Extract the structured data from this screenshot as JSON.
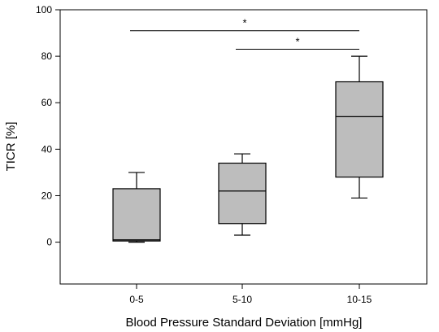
{
  "chart_data": {
    "type": "box",
    "title": "",
    "xlabel": "Blood Pressure Standard Deviation  [mmHg]",
    "ylabel": "TICR  [%]",
    "ylim": [
      -18,
      100
    ],
    "yticks": [
      0,
      20,
      40,
      60,
      80,
      100
    ],
    "categories": [
      "0-5",
      "5-10",
      "10-15"
    ],
    "boxes": [
      {
        "category": "0-5",
        "whisker_low": 0,
        "q1": 0.5,
        "median": 1,
        "q3": 23,
        "whisker_high": 30
      },
      {
        "category": "5-10",
        "whisker_low": 3,
        "q1": 8,
        "median": 22,
        "q3": 34,
        "whisker_high": 38
      },
      {
        "category": "10-15",
        "whisker_low": 19,
        "q1": 28,
        "median": 54,
        "q3": 69,
        "whisker_high": 80
      }
    ],
    "significance": [
      {
        "from": "0-5",
        "to": "10-15",
        "y": 91,
        "label": "*"
      },
      {
        "from": "5-10",
        "to": "10-15",
        "y": 83,
        "label": "*"
      }
    ],
    "box_fill": "#bdbdbd",
    "grid": false,
    "legend": "none"
  }
}
